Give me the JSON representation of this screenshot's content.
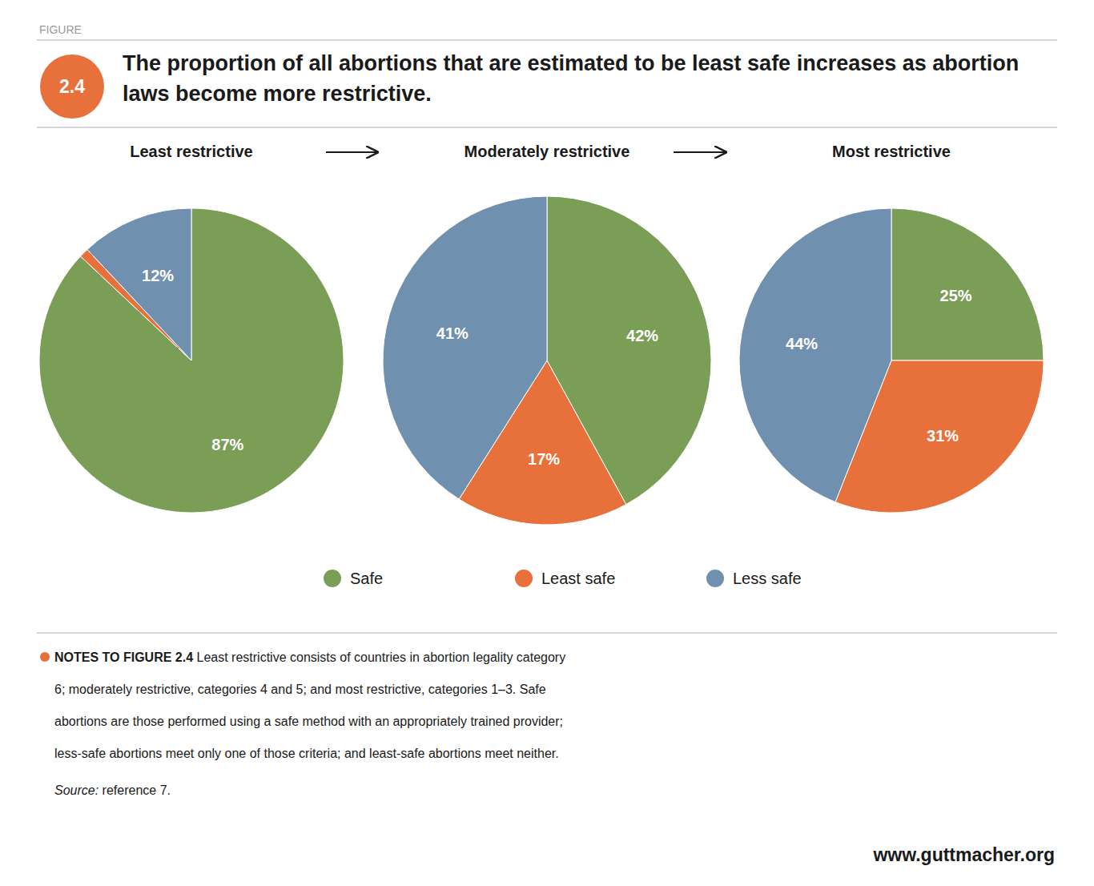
{
  "title": "The proportion of all abortions that are estimated to be least safe increases as abortion laws become more restrictive.",
  "annotations": [
    "FIGURE",
    "2.4",
    "NOTES TO FIGURE 2.4",
    " Least restrictive consists of countries in abortion legality category",
    "6; moderately restrictive, categories 4 and 5; and most restrictive, categories 1–3. Safe",
    "abortions are those performed using a safe method with an appropriately trained provider;",
    "less-safe abortions meet only one of those criteria; and least-safe abortions meet neither.",
    "Source:",
    " reference 7.",
    "www.guttmacher.org"
  ],
  "chart_data": [
    {
      "type": "pie",
      "title": "Least restrictive",
      "categories": [
        "Safe",
        "Least safe",
        "Less safe"
      ],
      "values": [
        87,
        1,
        12
      ],
      "value_labels": [
        "87%",
        null,
        "12%"
      ],
      "colors": [
        "#7A9E56",
        "#E8703A",
        "#7090B0"
      ],
      "data_labels": true,
      "legend": "bottom"
    },
    {
      "type": "pie",
      "title": "Moderately restrictive",
      "categories": [
        "Safe",
        "Least safe",
        "Less safe"
      ],
      "values": [
        42,
        17,
        41
      ],
      "value_labels": [
        "42%",
        "17%",
        "41%"
      ],
      "colors": [
        "#7A9E56",
        "#E8703A",
        "#7090B0"
      ],
      "data_labels": true
    },
    {
      "type": "pie",
      "title": "Most restrictive",
      "categories": [
        "Safe",
        "Least safe",
        "Less safe"
      ],
      "values": [
        25,
        31,
        44
      ],
      "value_labels": [
        "25%",
        "31%",
        "44%"
      ],
      "colors": [
        "#7A9E56",
        "#E8703A",
        "#7090B0"
      ],
      "data_labels": true
    }
  ]
}
